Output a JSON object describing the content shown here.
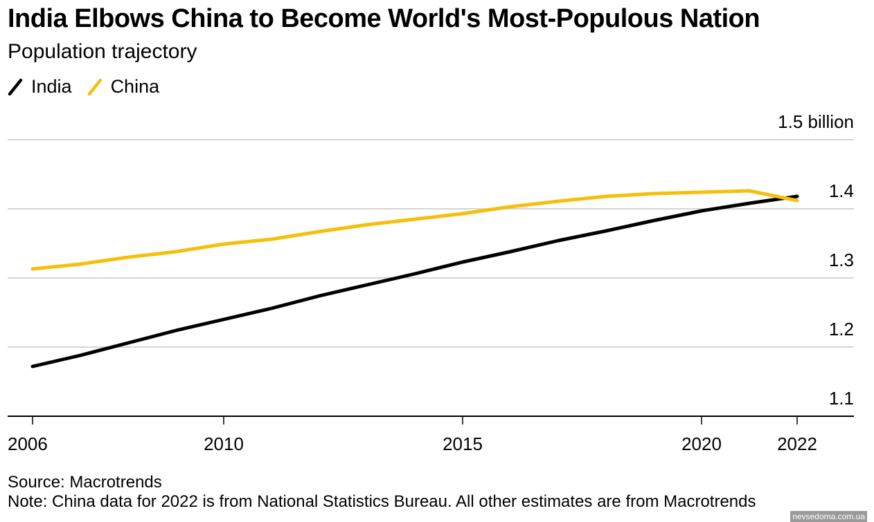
{
  "header": {
    "title": "India Elbows China to Become World's Most-Populous Nation",
    "subtitle": "Population trajectory"
  },
  "legend": [
    {
      "label": "India",
      "color": "#000000"
    },
    {
      "label": "China",
      "color": "#f5bf0c"
    }
  ],
  "footer": {
    "source": "Source: Macrotrends",
    "note": "Note: China data for 2022 is from National Statistics Bureau. All other estimates are from Macrotrends",
    "watermark": "nevsedoma.com.ua"
  },
  "chart_data": {
    "type": "line",
    "title": "India Elbows China to Become World's Most-Populous Nation",
    "subtitle": "Population trajectory",
    "xlabel": "",
    "ylabel": "",
    "x": [
      2006,
      2007,
      2008,
      2009,
      2010,
      2011,
      2012,
      2013,
      2014,
      2015,
      2016,
      2017,
      2018,
      2019,
      2020,
      2021,
      2022
    ],
    "series": [
      {
        "name": "India",
        "color": "#000000",
        "values": [
          1.172,
          1.188,
          1.206,
          1.224,
          1.24,
          1.256,
          1.274,
          1.29,
          1.306,
          1.323,
          1.338,
          1.354,
          1.368,
          1.383,
          1.397,
          1.408,
          1.418
        ]
      },
      {
        "name": "China",
        "color": "#f5bf0c",
        "values": [
          1.313,
          1.32,
          1.33,
          1.338,
          1.349,
          1.356,
          1.367,
          1.377,
          1.385,
          1.393,
          1.403,
          1.411,
          1.418,
          1.422,
          1.424,
          1.426,
          1.412
        ]
      }
    ],
    "xlim": [
      2006,
      2022
    ],
    "ylim": [
      1.1,
      1.5
    ],
    "x_ticks": [
      2006,
      2010,
      2015,
      2020,
      2022
    ],
    "x_tick_labels": [
      "2006",
      "2010",
      "2015",
      "2020",
      "2022"
    ],
    "y_ticks": [
      1.1,
      1.2,
      1.3,
      1.4,
      1.5
    ],
    "y_tick_labels": [
      "1.1",
      "1.2",
      "1.3",
      "1.4",
      "1.5 billion"
    ],
    "y_axis_side": "right",
    "grid": true,
    "legend_position": "top-left",
    "units": "billion"
  }
}
